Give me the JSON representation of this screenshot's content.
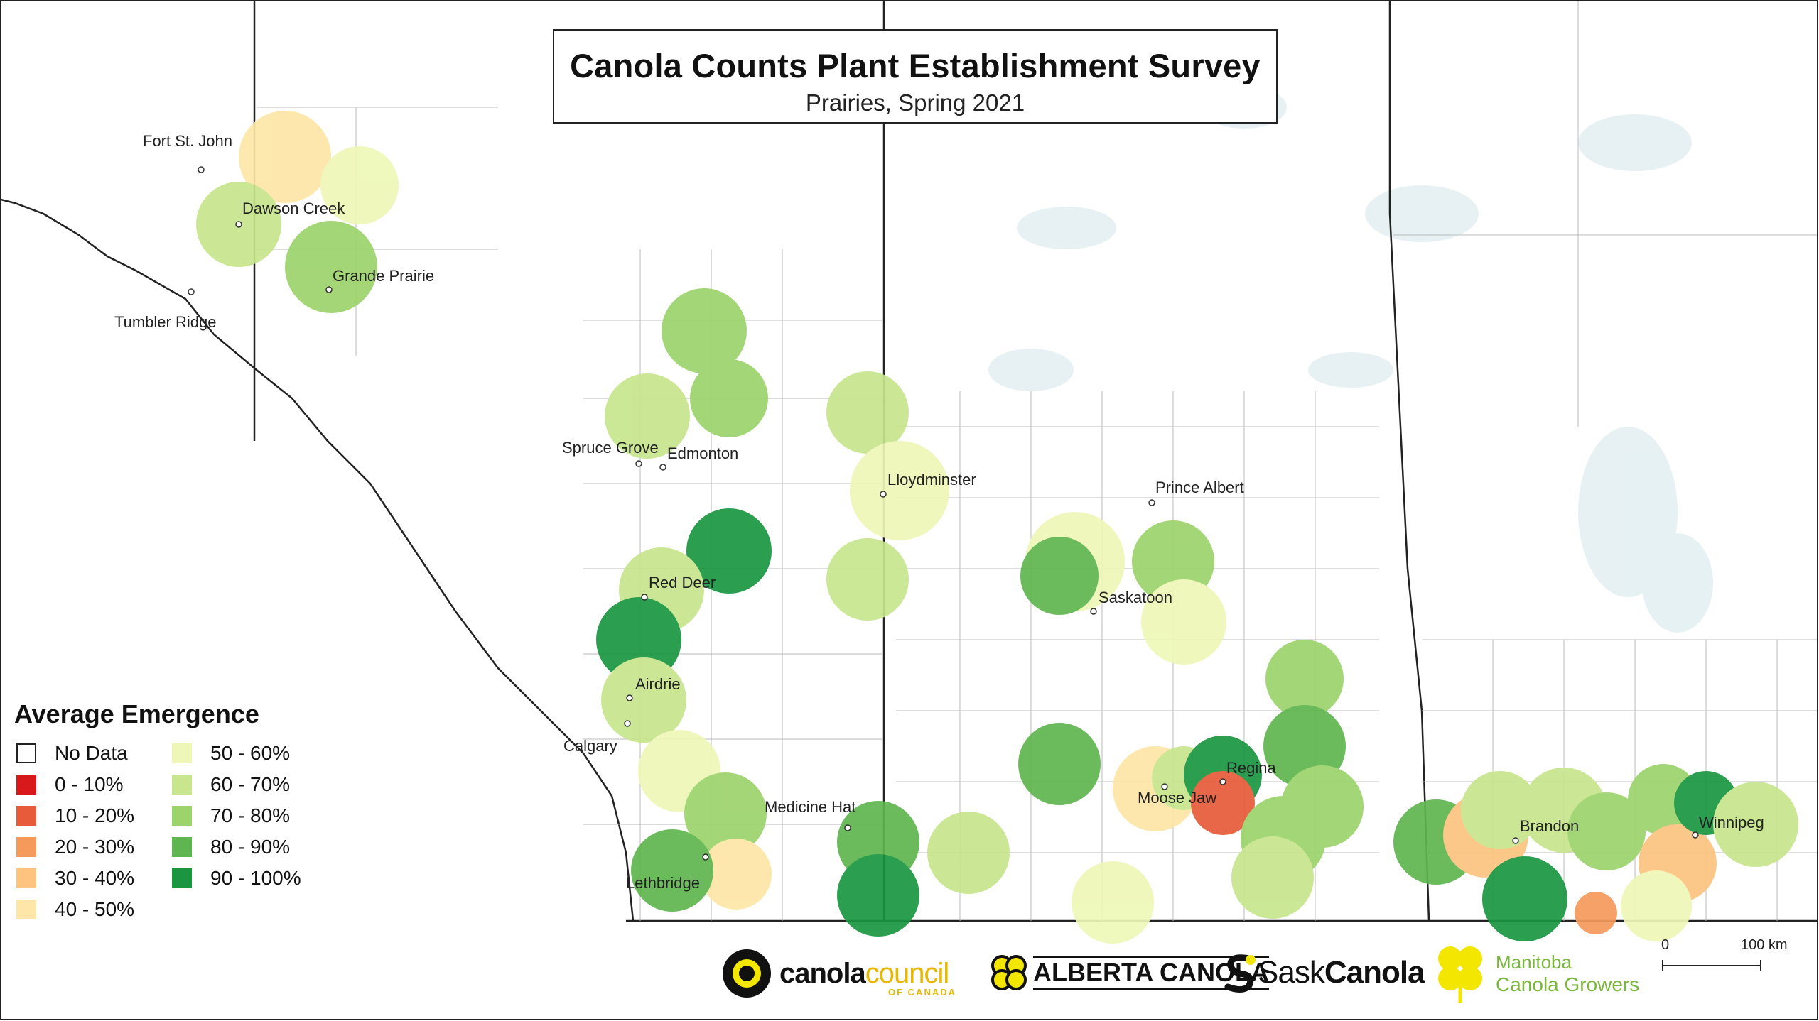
{
  "title": "Canola Counts Plant Establishment Survey",
  "subtitle": "Prairies, Spring 2021",
  "legend": {
    "heading": "Average Emergence",
    "items": [
      {
        "label": "No Data",
        "color": "#ffffff"
      },
      {
        "label": "0 - 10%",
        "color": "#d7191c"
      },
      {
        "label": "10 - 20%",
        "color": "#e85b3a"
      },
      {
        "label": "20 - 30%",
        "color": "#f59a5b"
      },
      {
        "label": "30 - 40%",
        "color": "#fcc47f"
      },
      {
        "label": "40 - 50%",
        "color": "#fde6a7"
      },
      {
        "label": "50 - 60%",
        "color": "#eef7b7"
      },
      {
        "label": "60 - 70%",
        "color": "#c7e68d"
      },
      {
        "label": "70 - 80%",
        "color": "#9cd36b"
      },
      {
        "label": "80 - 90%",
        "color": "#5fb54f"
      },
      {
        "label": "90 - 100%",
        "color": "#1a9641"
      }
    ]
  },
  "cities": [
    "Fort St. John",
    "Dawson Creek",
    "Grande Prairie",
    "Tumbler Ridge",
    "Spruce Grove",
    "Edmonton",
    "Lloydminster",
    "Prince Albert",
    "Red Deer",
    "Saskatoon",
    "Airdrie",
    "Calgary",
    "Medicine Hat",
    "Moose Jaw",
    "Regina",
    "Lethbridge",
    "Brandon",
    "Winnipeg"
  ],
  "logos": {
    "ccc_main": "canola",
    "ccc_accent": "council",
    "ccc_sub": "OF CANADA",
    "alberta": "ALBERTA CANOLA",
    "sask_a": "Sask",
    "sask_b": "Canola",
    "mb_line1": "Manitoba",
    "mb_line2": "Canola Growers"
  },
  "scale": {
    "start": "0",
    "end": "100 km"
  }
}
